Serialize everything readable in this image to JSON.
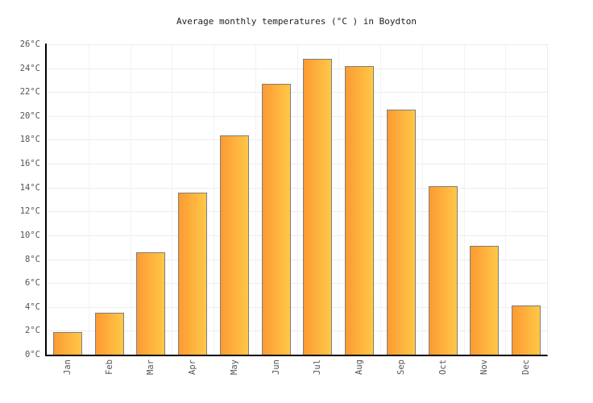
{
  "chart_data": {
    "type": "bar",
    "title": "Average monthly temperatures (°C ) in Boydton",
    "categories": [
      "Jan",
      "Feb",
      "Mar",
      "Apr",
      "May",
      "Jun",
      "Jul",
      "Aug",
      "Sep",
      "Oct",
      "Nov",
      "Dec"
    ],
    "values": [
      1.9,
      3.5,
      8.6,
      13.6,
      18.4,
      22.7,
      24.8,
      24.2,
      20.5,
      14.1,
      9.1,
      4.1
    ],
    "unit": "°C",
    "xlabel": "",
    "ylabel": "",
    "ylim": [
      0,
      26
    ],
    "ytick_step": 2,
    "ytick_suffix": "°C",
    "ytick_labels": [
      "0°C",
      "2°C",
      "4°C",
      "6°C",
      "8°C",
      "10°C",
      "12°C",
      "14°C",
      "16°C",
      "18°C",
      "20°C",
      "22°C",
      "24°C",
      "26°C"
    ],
    "grid": true,
    "legend": false,
    "bar_orientation": "vertical",
    "x_label_rotation_deg": -90
  },
  "colors": {
    "background": "#FFFFFF",
    "bar_gradient_left": "#FC9A33",
    "bar_gradient_right": "#FFC847",
    "bar_border": "#7E7E7E",
    "grid_horizontal": "#ECECEC",
    "grid_vertical": "#F2F2F2",
    "axis": "#000000",
    "tick_text": "#555555",
    "title_text": "#222222"
  }
}
